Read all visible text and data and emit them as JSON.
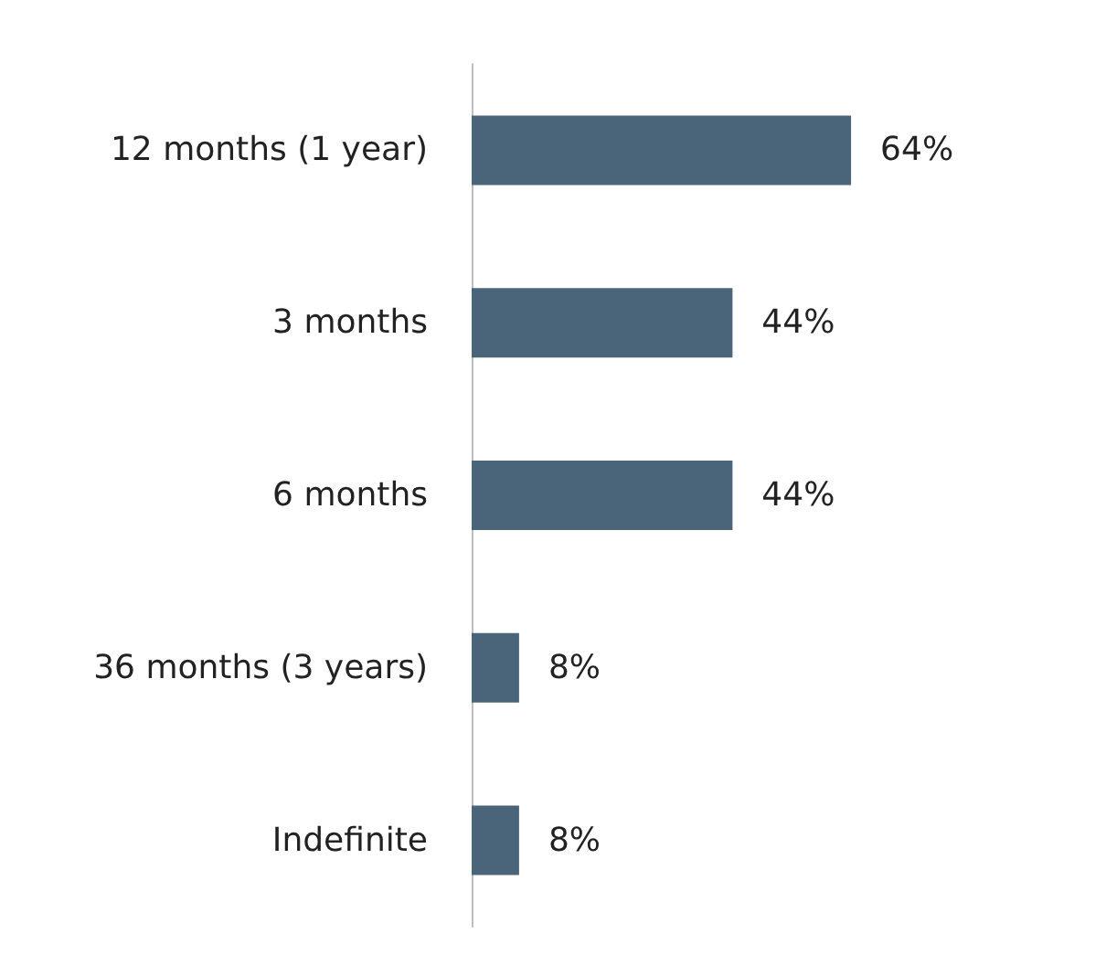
{
  "chart_data": {
    "type": "bar",
    "orientation": "horizontal",
    "categories": [
      "12 months (1 year)",
      "3 months",
      "6 months",
      "36 months (3 years)",
      "Indefinite"
    ],
    "values": [
      64,
      44,
      44,
      8,
      8
    ],
    "value_labels": [
      "64%",
      "44%",
      "44%",
      "8%",
      "8%"
    ],
    "color": "#4a6479"
  }
}
